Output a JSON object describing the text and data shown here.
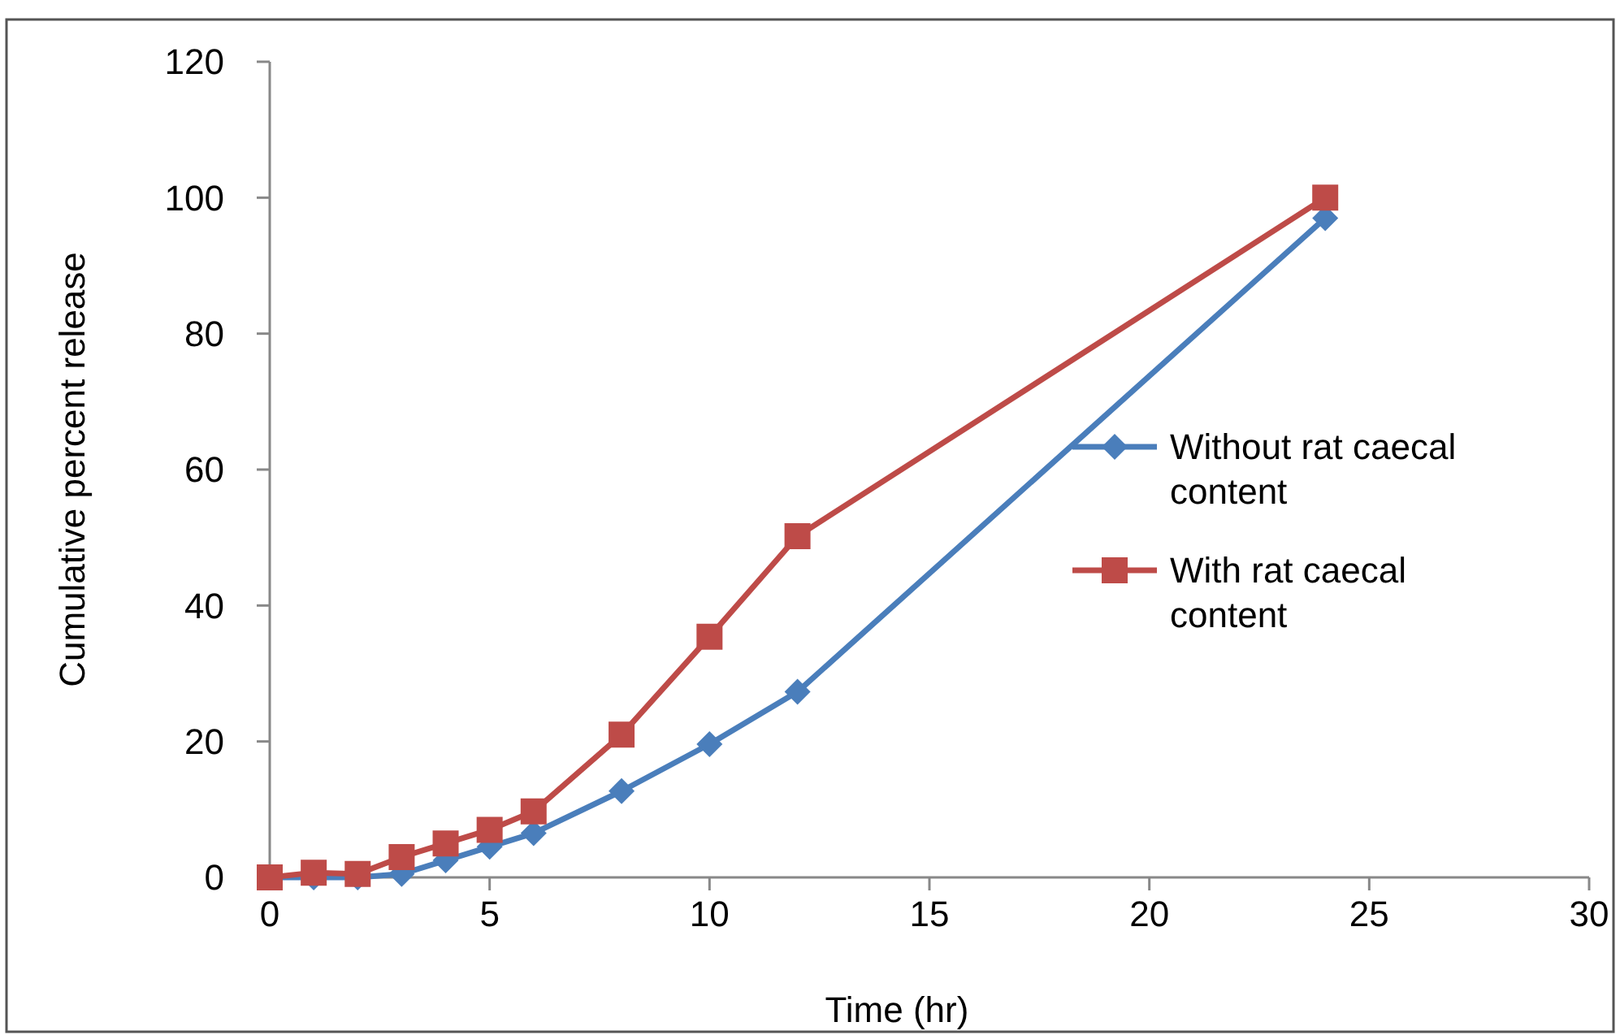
{
  "chart_data": {
    "type": "line",
    "xlabel": "Time (hr)",
    "ylabel": "Cumulative percent release",
    "x": [
      0,
      1,
      2,
      3,
      4,
      5,
      6,
      8,
      10,
      12,
      24
    ],
    "xlim": [
      0,
      30
    ],
    "xticks": [
      0,
      5,
      10,
      15,
      20,
      25,
      30
    ],
    "ylim": [
      0,
      120
    ],
    "yticks": [
      0,
      20,
      40,
      60,
      80,
      100,
      120
    ],
    "grid": false,
    "legend": "right",
    "series": [
      {
        "name": "Without rat caecal content",
        "color": "#4a7ebb",
        "marker": "diamond",
        "values": [
          0,
          0,
          0,
          0.5,
          2.5,
          4.5,
          6.5,
          12.7,
          19.6,
          27.3,
          97
        ]
      },
      {
        "name": "With rat caecal content",
        "color": "#be4b48",
        "marker": "square",
        "values": [
          0,
          0.7,
          0.5,
          3,
          5,
          7,
          9.7,
          21,
          35.4,
          50.2,
          100
        ]
      }
    ]
  }
}
